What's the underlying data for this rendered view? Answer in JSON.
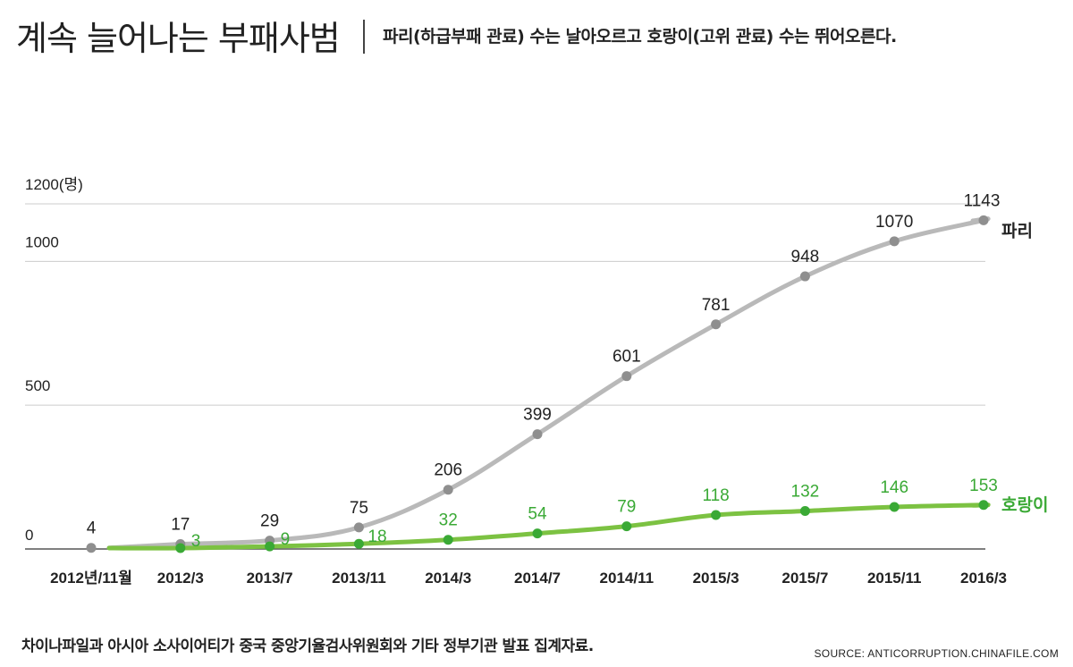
{
  "header": {
    "title": "계속 늘어나는 부패사범",
    "subtitle": "파리(하급부패 관료) 수는 날아오르고 호랑이(고위 관료) 수는 뛰어오른다."
  },
  "footer": {
    "note": "차이나파일과 아시아 소사이어티가 중국 중앙기율검사위원회와 기타 정부기관 발표 집계자료.",
    "source": "SOURCE: ANTICORRUPTION.CHINAFILE.COM"
  },
  "colors": {
    "flies": "#b9b9b9",
    "flies_marker": "#8f8f8f",
    "tigers": "#7cc242",
    "tigers_marker": "#3aa935",
    "tigers_label": "#3aa935",
    "grid": "#cccccc",
    "text": "#222222"
  },
  "chart_data": {
    "type": "line",
    "title": "계속 늘어나는 부패사범",
    "categories": [
      "2012년/11월",
      "2012/3",
      "2013/7",
      "2013/11",
      "2014/3",
      "2014/7",
      "2014/11",
      "2015/3",
      "2015/7",
      "2015/11",
      "2016/3"
    ],
    "y_ticks": [
      {
        "value": 0,
        "label": "0"
      },
      {
        "value": 500,
        "label": "500"
      },
      {
        "value": 1000,
        "label": "1000"
      },
      {
        "value": 1200,
        "label": "1200(명)"
      }
    ],
    "ylim": [
      0,
      1200
    ],
    "grid": true,
    "series": [
      {
        "name": "파리",
        "values": [
          4,
          17,
          29,
          75,
          206,
          399,
          601,
          781,
          948,
          1070,
          1143
        ]
      },
      {
        "name": "호랑이",
        "values": [
          null,
          3,
          9,
          18,
          32,
          54,
          79,
          118,
          132,
          146,
          153
        ]
      }
    ]
  }
}
